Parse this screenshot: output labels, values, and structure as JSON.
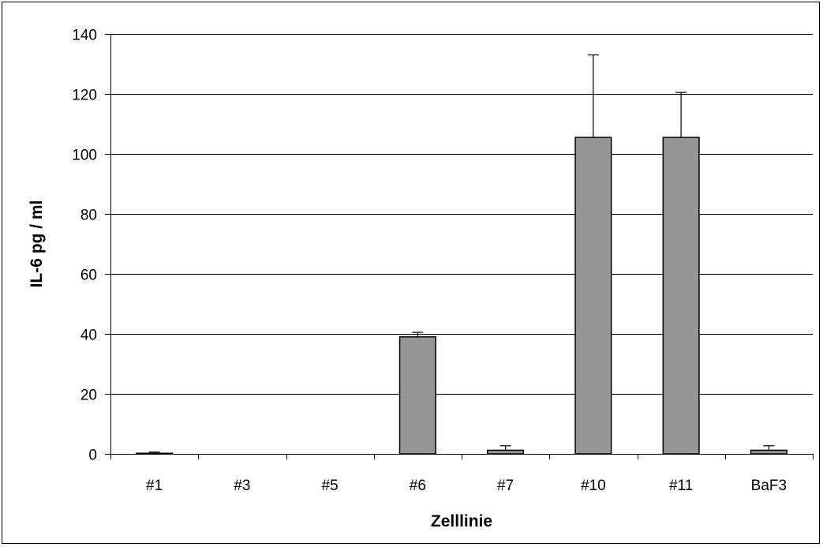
{
  "chart_data": {
    "type": "bar",
    "title": "",
    "xlabel": "Zelllinie",
    "ylabel": "IL-6 pg / ml",
    "categories": [
      "#1",
      "#3",
      "#5",
      "#6",
      "#7",
      "#10",
      "#11",
      "BaF3"
    ],
    "values": [
      0.2,
      0,
      0,
      39,
      1.2,
      105.5,
      105.5,
      1.2
    ],
    "errors": [
      0.4,
      0,
      0,
      1.5,
      1.5,
      27.5,
      15,
      1.5
    ],
    "ylim": [
      0,
      140
    ],
    "yticks": [
      0,
      20,
      40,
      60,
      80,
      100,
      120,
      140
    ],
    "grid": true,
    "bar_color": "#969696",
    "legend": "none"
  }
}
